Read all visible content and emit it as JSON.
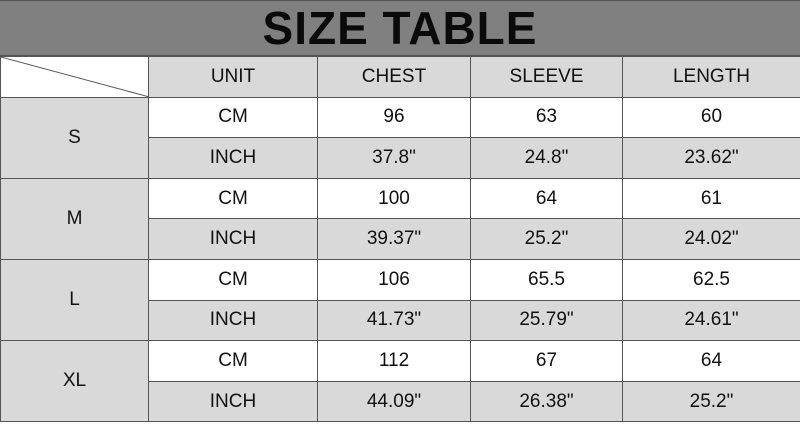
{
  "title": "SIZE TABLE",
  "headers": [
    "UNIT",
    "CHEST",
    "SLEEVE",
    "LENGTH"
  ],
  "colors": {
    "title_bg": "#808080",
    "header_bg": "#d9d9d9",
    "alt_row_bg": "#d9d9d9"
  },
  "sizes": [
    {
      "size": "S",
      "cm": {
        "unit": "CM",
        "chest": "96",
        "sleeve": "63",
        "length": "60"
      },
      "inch": {
        "unit": "INCH",
        "chest": "37.8\"",
        "sleeve": "24.8\"",
        "length": "23.62\""
      }
    },
    {
      "size": "M",
      "cm": {
        "unit": "CM",
        "chest": "100",
        "sleeve": "64",
        "length": "61"
      },
      "inch": {
        "unit": "INCH",
        "chest": "39.37\"",
        "sleeve": "25.2\"",
        "length": "24.02\""
      }
    },
    {
      "size": "L",
      "cm": {
        "unit": "CM",
        "chest": "106",
        "sleeve": "65.5",
        "length": "62.5"
      },
      "inch": {
        "unit": "INCH",
        "chest": "41.73\"",
        "sleeve": "25.79\"",
        "length": "24.61\""
      }
    },
    {
      "size": "XL",
      "cm": {
        "unit": "CM",
        "chest": "112",
        "sleeve": "67",
        "length": "64"
      },
      "inch": {
        "unit": "INCH",
        "chest": "44.09\"",
        "sleeve": "26.38\"",
        "length": "25.2\""
      }
    }
  ]
}
